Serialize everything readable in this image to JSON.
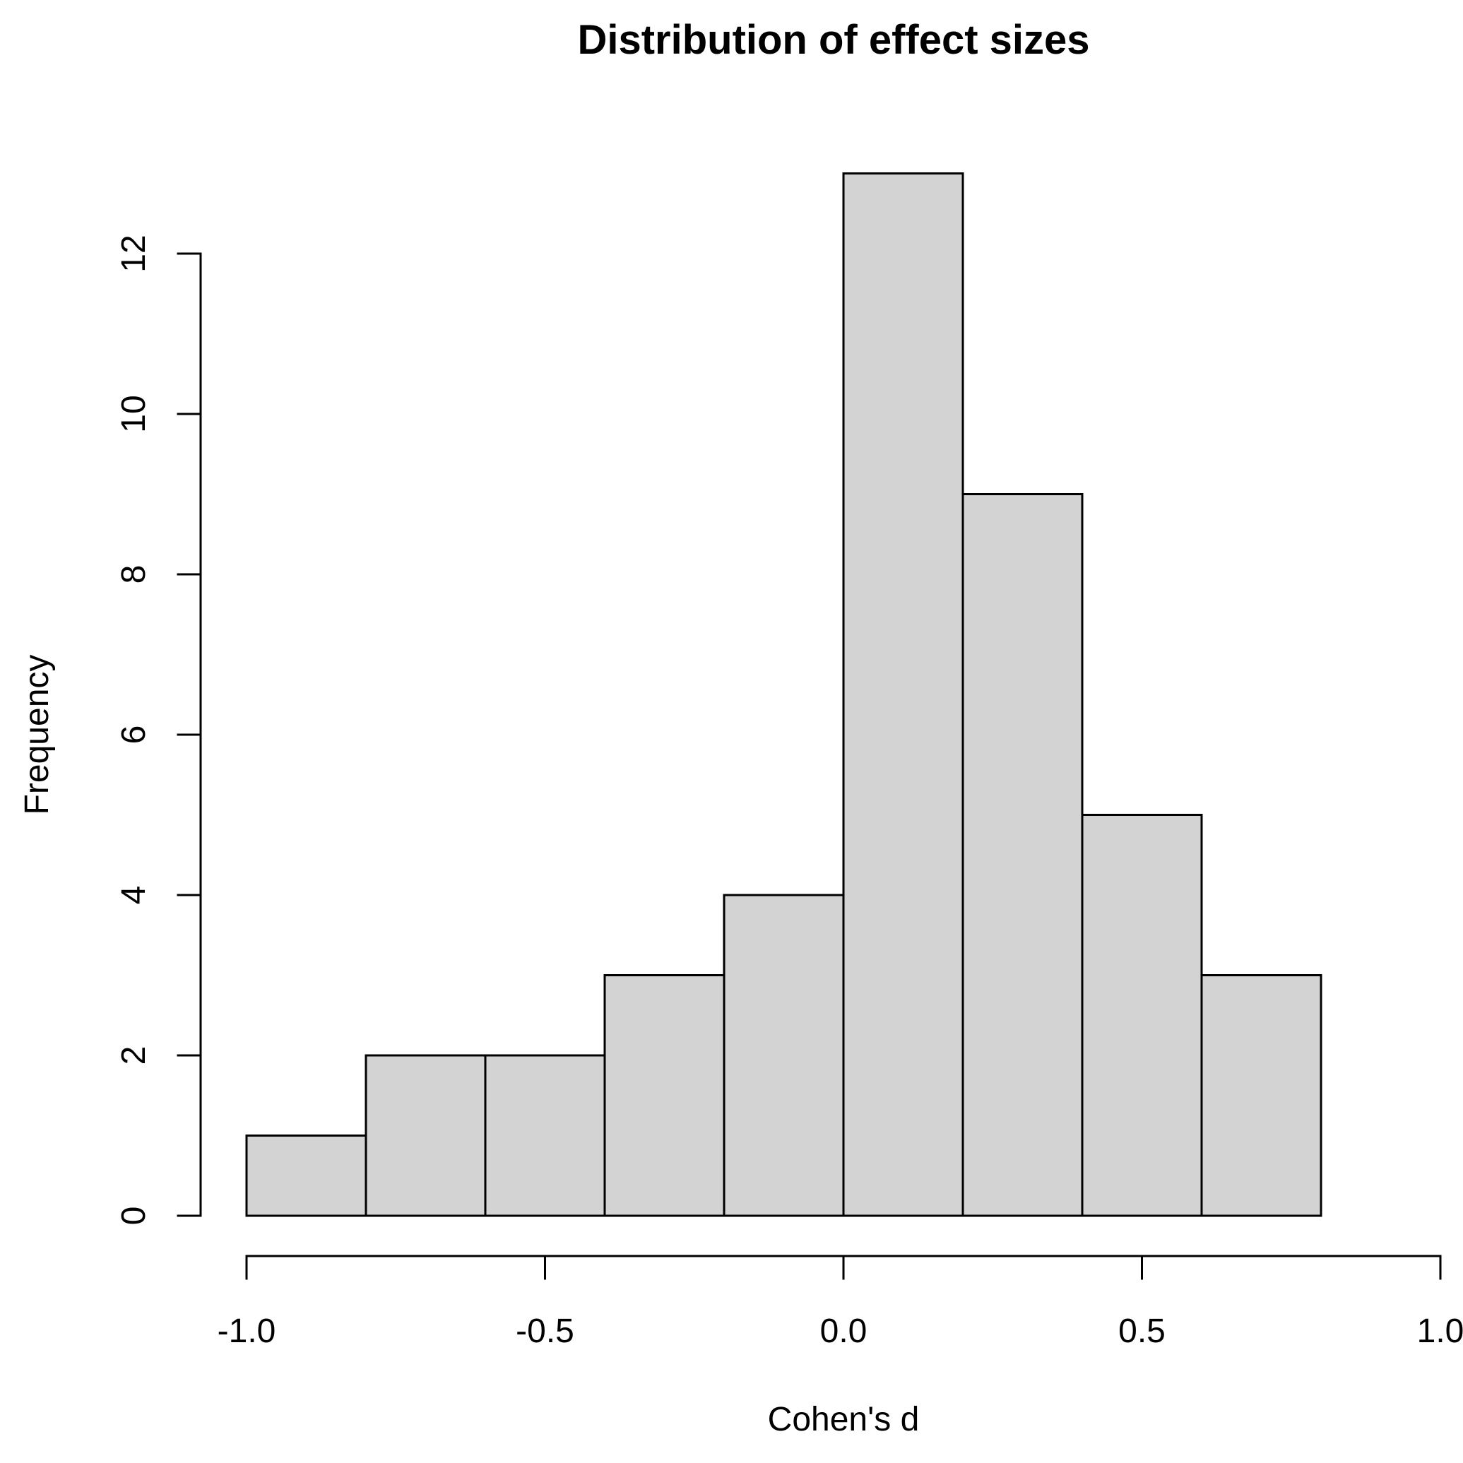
{
  "chart_data": {
    "type": "bar",
    "subtype": "histogram",
    "title": "Distribution of effect sizes",
    "xlabel": "Cohen's d",
    "ylabel": "Frequency",
    "bin_edges": [
      -1.0,
      -0.8,
      -0.6,
      -0.4,
      -0.2,
      0.0,
      0.2,
      0.4,
      0.6,
      0.8
    ],
    "counts": [
      1,
      2,
      2,
      3,
      4,
      13,
      9,
      5,
      3
    ],
    "x_tick_values": [
      -1.0,
      -0.5,
      0.0,
      0.5,
      1.0
    ],
    "x_tick_labels": [
      "-1.0",
      "-0.5",
      "0.0",
      "0.5",
      "1.0"
    ],
    "y_tick_values": [
      0,
      2,
      4,
      6,
      8,
      10,
      12
    ],
    "y_tick_labels": [
      "0",
      "2",
      "4",
      "6",
      "8",
      "10",
      "12"
    ],
    "xlim": [
      -1.0,
      1.0
    ],
    "y_axis_range": [
      0,
      12
    ],
    "ymax_data": 13,
    "grid": false,
    "legend": null,
    "colors": {
      "bar_fill": "#d3d3d3",
      "bar_border": "#000000",
      "axis": "#000000",
      "text": "#000000",
      "background": "#ffffff"
    }
  }
}
